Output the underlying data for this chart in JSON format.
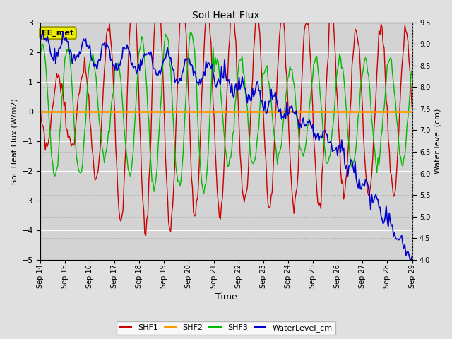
{
  "title": "Soil Heat Flux",
  "xlabel": "Time",
  "ylabel_left": "Soil Heat Flux (W/m2)",
  "ylabel_right": "Water level (cm)",
  "ylim_left": [
    -5.0,
    3.0
  ],
  "ylim_right": [
    4.0,
    9.5
  ],
  "xtick_labels": [
    "Sep 14",
    "Sep 15",
    "Sep 16",
    "Sep 17",
    "Sep 18",
    "Sep 19",
    "Sep 20",
    "Sep 21",
    "Sep 22",
    "Sep 23",
    "Sep 24",
    "Sep 25",
    "Sep 26",
    "Sep 27",
    "Sep 28",
    "Sep 29"
  ],
  "bg_color": "#e0e0e0",
  "plot_bg_color": "#d3d3d3",
  "grid_color": "#ffffff",
  "annotation_text": "EE_met",
  "annotation_bg": "#eeee00",
  "annotation_border": "#999900",
  "series_colors": {
    "SHF1": "#cc0000",
    "SHF2": "#ff9900",
    "SHF3": "#00bb00",
    "WaterLevel": "#0000cc"
  },
  "legend_labels": [
    "SHF1",
    "SHF2",
    "SHF3",
    "WaterLevel_cm"
  ]
}
